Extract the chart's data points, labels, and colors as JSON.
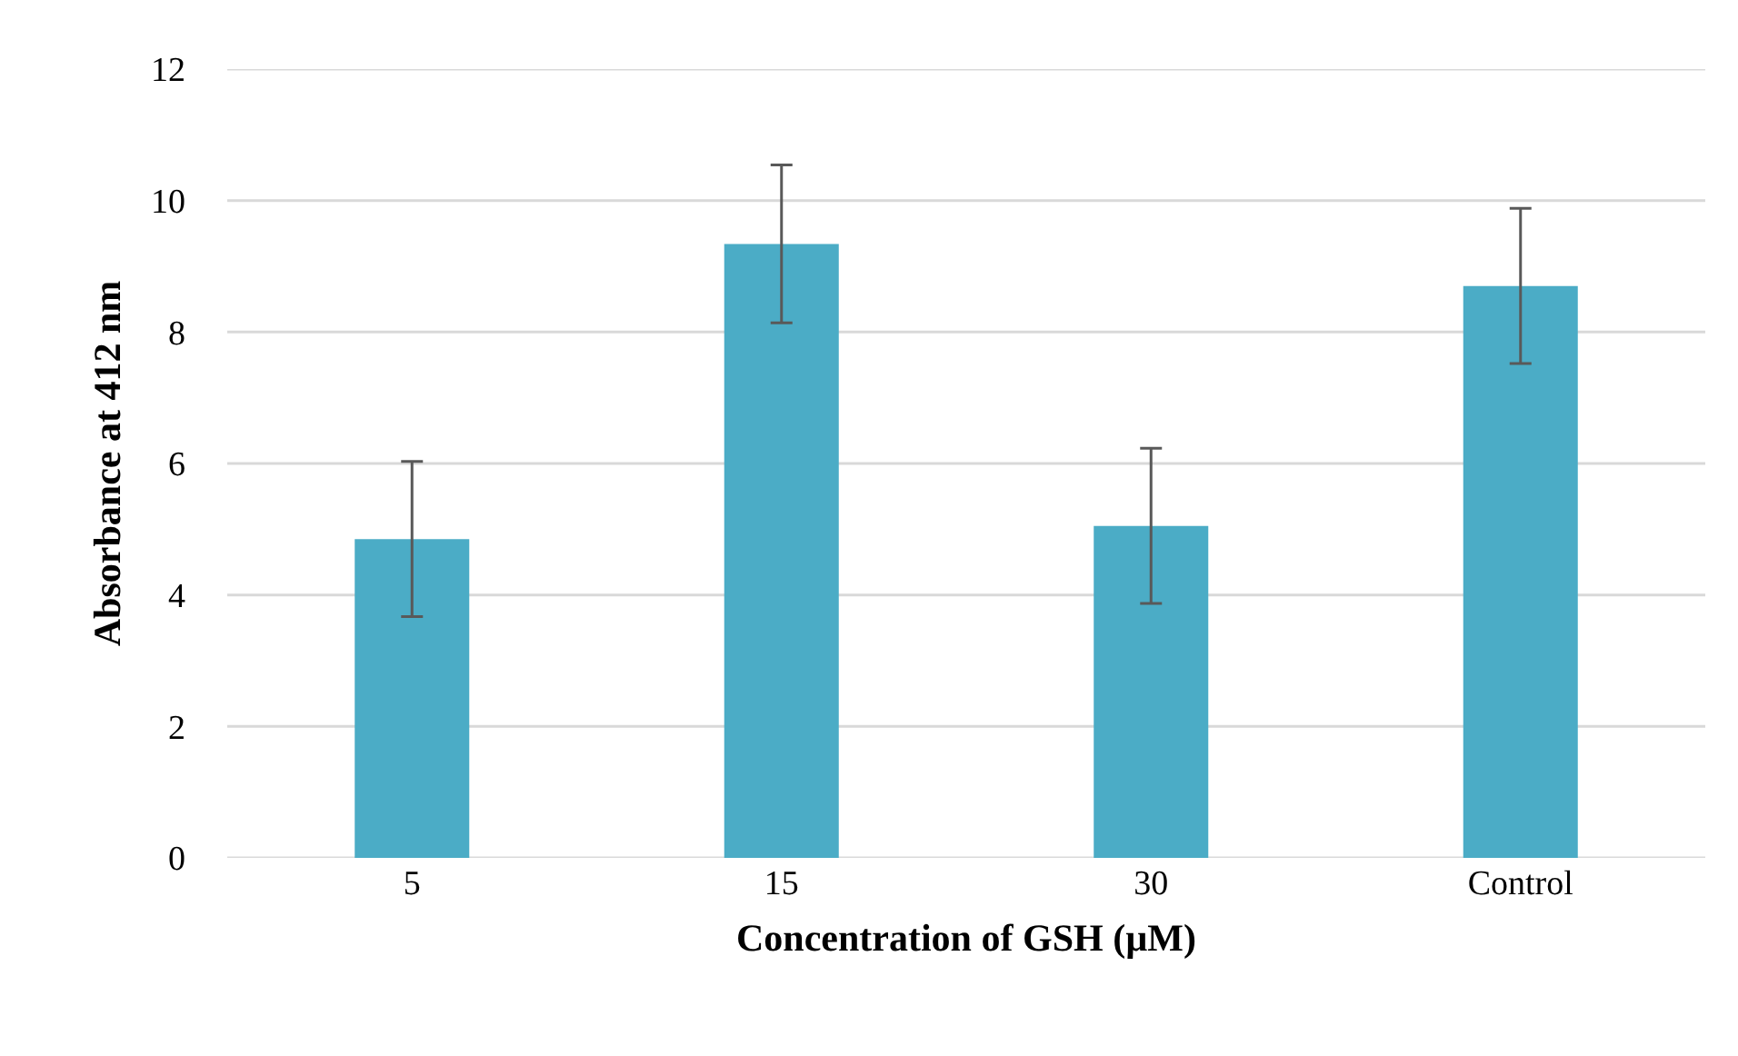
{
  "chart_data": {
    "type": "bar",
    "xlabel": "Concentration of GSH (µM)",
    "ylabel": "Absorbance at 412 nm",
    "categories": [
      "5",
      "15",
      "30",
      "Control"
    ],
    "values": [
      4.85,
      9.34,
      5.05,
      8.7
    ],
    "errors": [
      1.18,
      1.2,
      1.18,
      1.18
    ],
    "color": "#4bacc6",
    "ylim": [
      0,
      12
    ],
    "yticks": [
      0,
      2,
      4,
      6,
      8,
      10,
      12
    ],
    "grid": "y"
  }
}
